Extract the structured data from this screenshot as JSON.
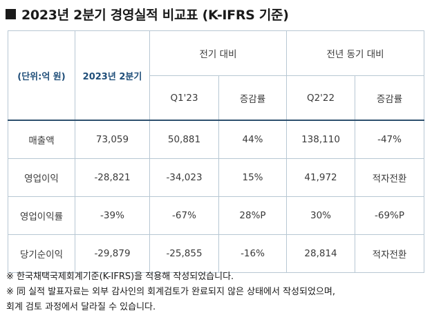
{
  "title": "2023년 2분기 경영실적 비교표 (K-IFRS 기준)",
  "header": {
    "unit": "(단위:억 원)",
    "current": "2023년 2분기",
    "qoq_group": "전기 대비",
    "yoy_group": "전년 동기 대비",
    "qoq_period": "Q1'23",
    "qoq_change": "증감률",
    "yoy_period": "Q2'22",
    "yoy_change": "증감률"
  },
  "rows": [
    {
      "label": "매출액",
      "current": "73,059",
      "q1_23": "50,881",
      "qoq": "44%",
      "q2_22": "138,110",
      "yoy": "-47%"
    },
    {
      "label": "영업이익",
      "current": "-28,821",
      "q1_23": "-34,023",
      "qoq": "15%",
      "q2_22": "41,972",
      "yoy": "적자전환"
    },
    {
      "label": "영업이익률",
      "current": "-39%",
      "q1_23": "-67%",
      "qoq": "28%P",
      "q2_22": "30%",
      "yoy": "-69%P"
    },
    {
      "label": "당기순이익",
      "current": "-29,879",
      "q1_23": "-25,855",
      "qoq": "-16%",
      "q2_22": "28,814",
      "yoy": "적자전환"
    }
  ],
  "notes": [
    "※ 한국채택국제회계기준(K-IFRS)을 적용해 작성되었습니다.",
    "※ 同 실적 발표자료는 외부 감사인의 회계검토가 완료되지 않은 상태에서 작성되었으며,",
    "회계 검토 과정에서 달라질 수 있습니다."
  ]
}
